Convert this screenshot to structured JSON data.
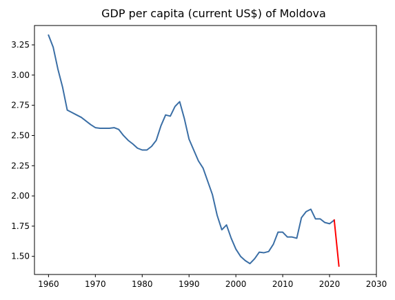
{
  "chart_data": {
    "type": "line",
    "title": "GDP per capita (current US$) of Moldova",
    "xlabel": "",
    "ylabel": "",
    "xlim": [
      1957,
      2030
    ],
    "ylim": [
      1.35,
      3.41
    ],
    "x_ticks": [
      1960,
      1970,
      1980,
      1990,
      2000,
      2010,
      2020,
      2030
    ],
    "y_ticks": [
      1.5,
      1.75,
      2.0,
      2.25,
      2.5,
      2.75,
      3.0,
      3.25
    ],
    "y_tick_labels": [
      "1.50",
      "1.75",
      "2.00",
      "2.25",
      "2.50",
      "2.75",
      "3.00",
      "3.25"
    ],
    "grid": false,
    "series": [
      {
        "color": "#3a6ea5",
        "x": [
          1960,
          1961,
          1962,
          1963,
          1964,
          1965,
          1966,
          1967,
          1968,
          1969,
          1970,
          1971,
          1972,
          1973,
          1974,
          1975,
          1976,
          1977,
          1978,
          1979,
          1980,
          1981,
          1982,
          1983,
          1984,
          1985,
          1986,
          1987,
          1988,
          1989,
          1990,
          1991,
          1992,
          1993,
          1994,
          1995,
          1996,
          1997,
          1998,
          1999,
          2000,
          2001,
          2002,
          2003,
          2004,
          2005,
          2006,
          2007,
          2008,
          2009,
          2010,
          2011,
          2012,
          2013,
          2014,
          2015,
          2016,
          2017,
          2018,
          2019,
          2020,
          2021
        ],
        "y": [
          3.33,
          3.23,
          3.05,
          2.9,
          2.71,
          2.69,
          2.67,
          2.65,
          2.62,
          2.59,
          2.565,
          2.56,
          2.56,
          2.56,
          2.565,
          2.55,
          2.5,
          2.46,
          2.43,
          2.395,
          2.38,
          2.38,
          2.41,
          2.46,
          2.58,
          2.67,
          2.66,
          2.74,
          2.78,
          2.64,
          2.47,
          2.38,
          2.29,
          2.23,
          2.12,
          2.01,
          1.84,
          1.72,
          1.76,
          1.65,
          1.56,
          1.5,
          1.465,
          1.44,
          1.48,
          1.535,
          1.53,
          1.54,
          1.6,
          1.7,
          1.7,
          1.66,
          1.66,
          1.65,
          1.82,
          1.87,
          1.89,
          1.81,
          1.81,
          1.78,
          1.77,
          1.8
        ]
      },
      {
        "color": "#ff0000",
        "x": [
          2021,
          2022
        ],
        "y": [
          1.8,
          1.42
        ]
      }
    ]
  }
}
